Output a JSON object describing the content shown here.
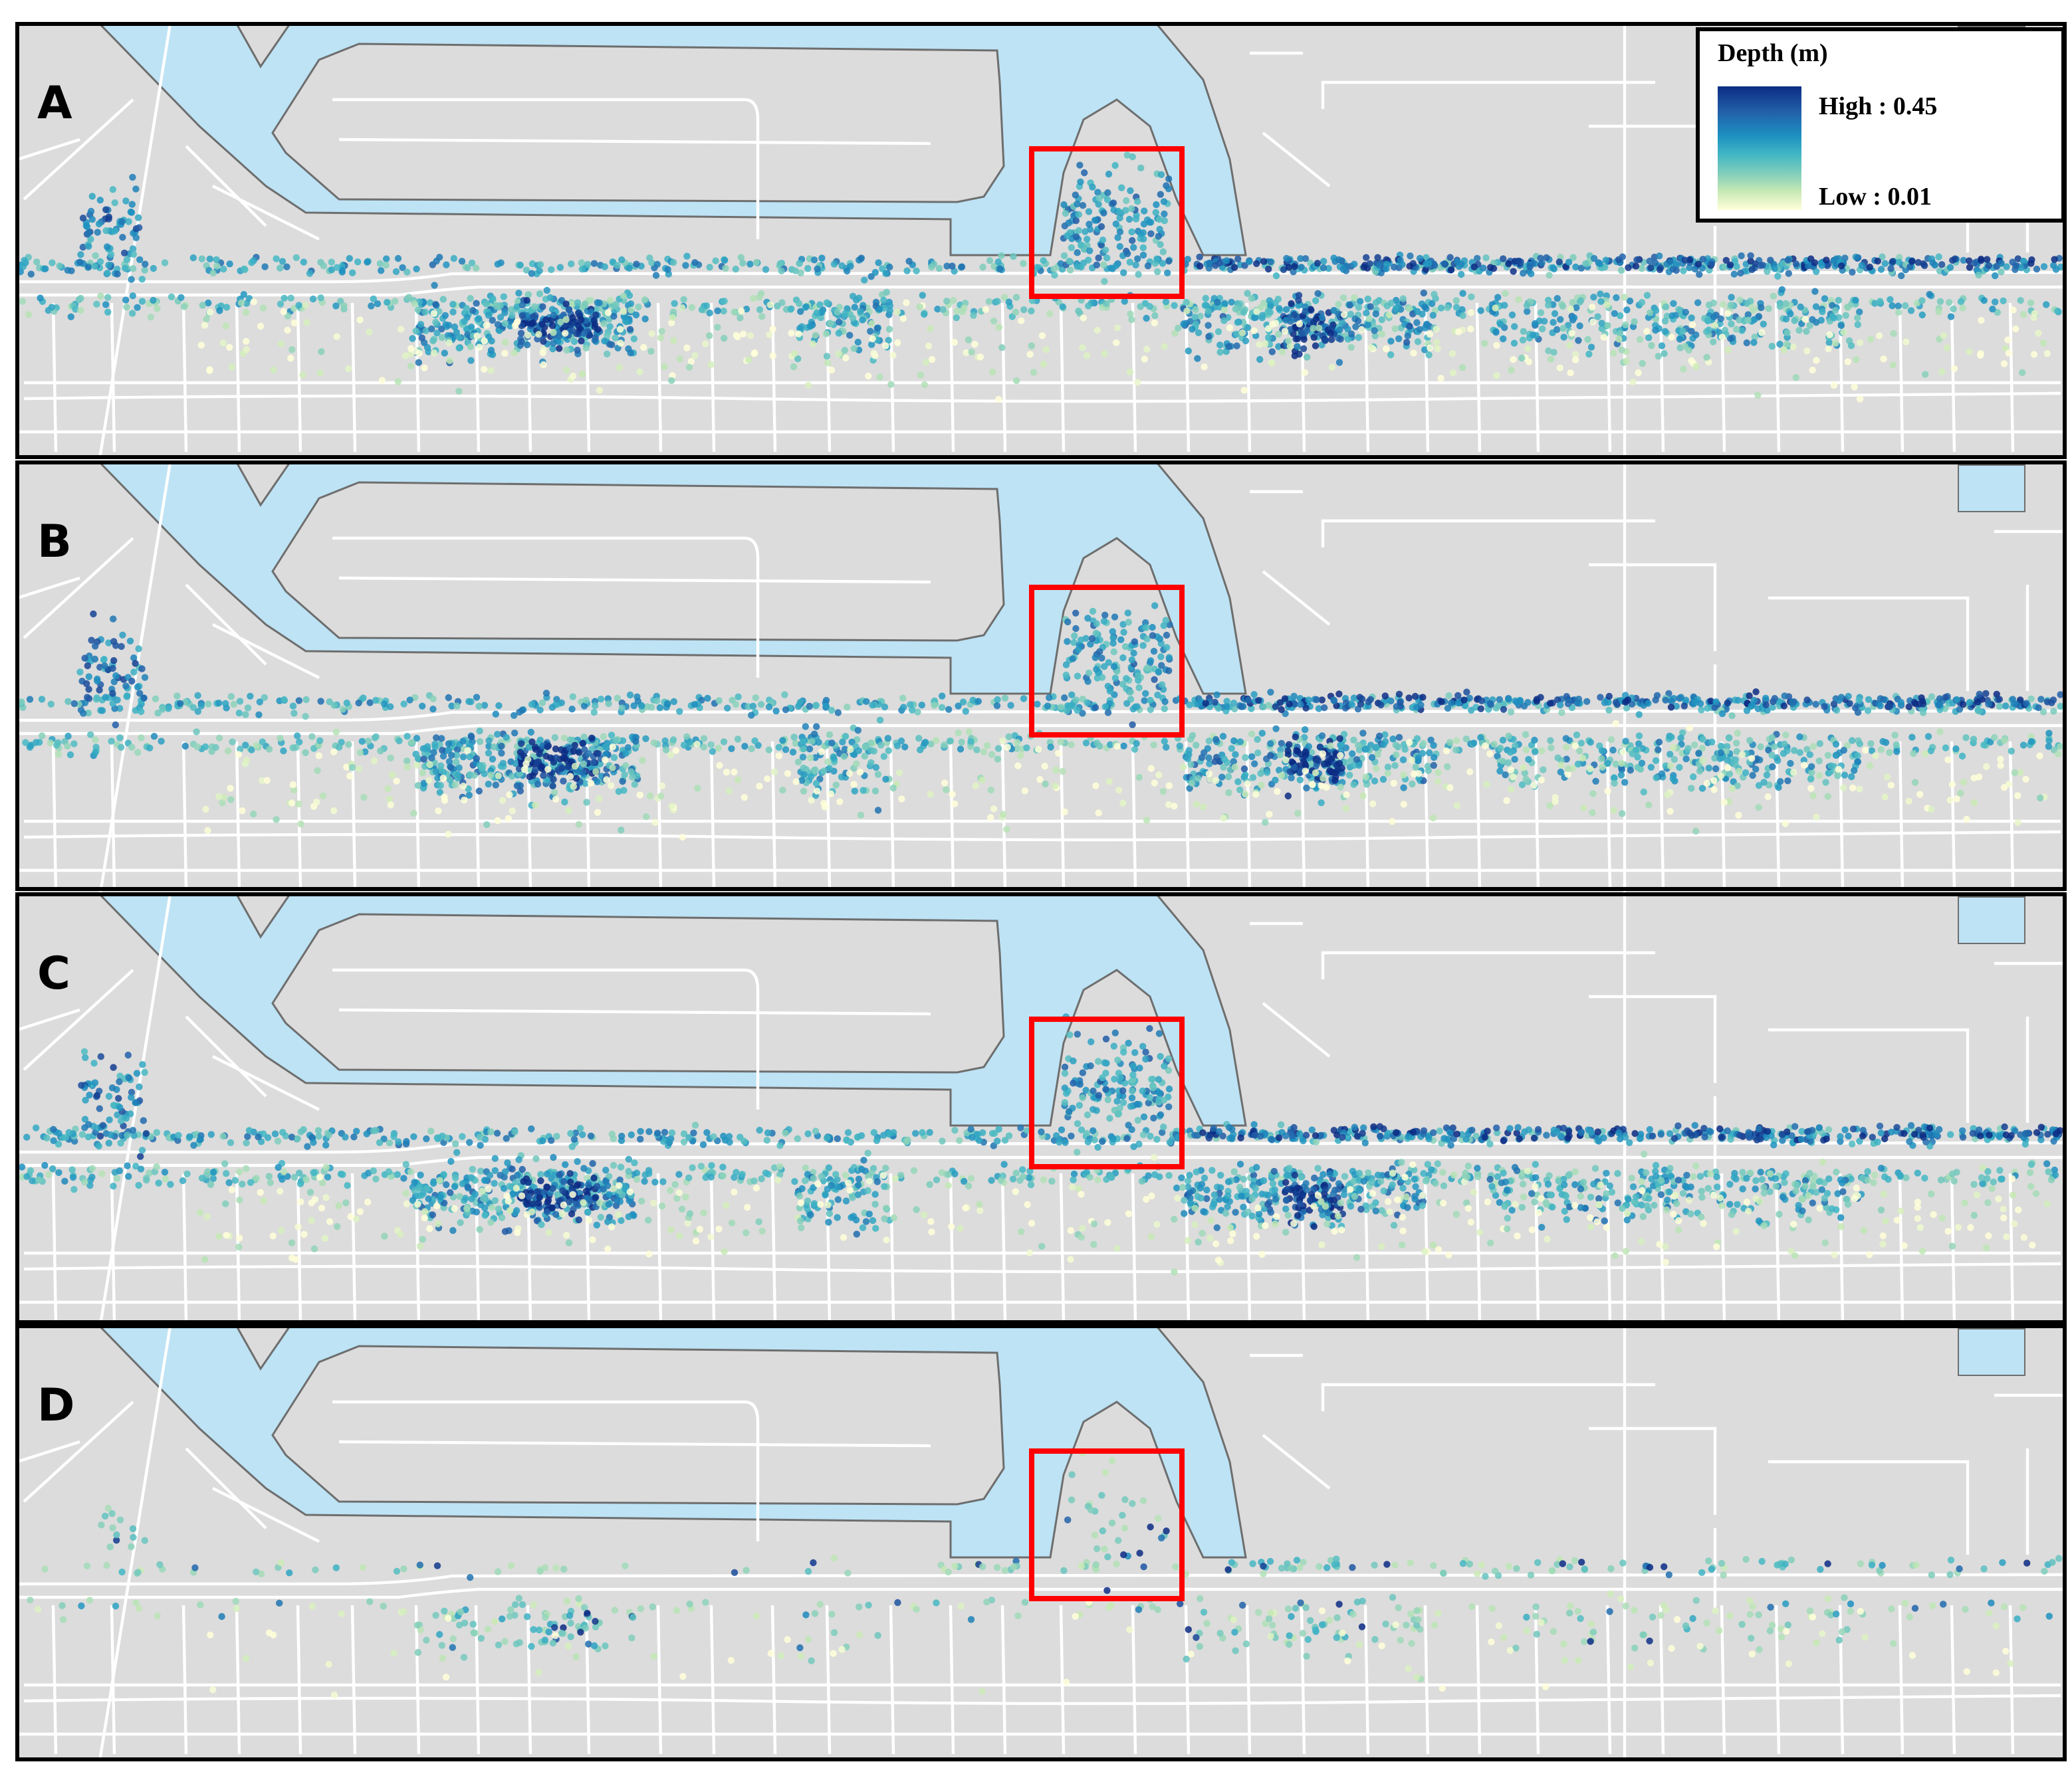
{
  "panels": [
    {
      "label": "A"
    },
    {
      "label": "B"
    },
    {
      "label": "C"
    },
    {
      "label": "D"
    }
  ],
  "legend": {
    "title": "Depth (m)",
    "high_label": "High : 0.45",
    "low_label": "Low : 0.01"
  }
}
